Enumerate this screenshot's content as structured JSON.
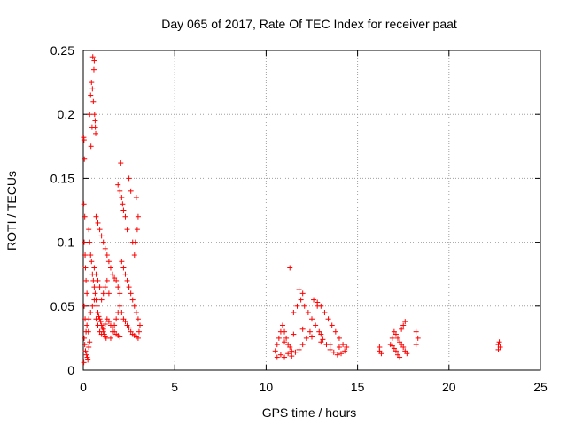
{
  "colors": {
    "points": "#ff0000",
    "grid": "#a0a0a0",
    "axes": "#000000"
  },
  "chart_data": {
    "type": "scatter",
    "title": "Day 065 of 2017, Rate Of TEC Index for receiver paat",
    "xlabel": "GPS time / hours",
    "ylabel": "ROTI / TECUs",
    "xlim": [
      0,
      25
    ],
    "ylim": [
      0,
      0.25
    ],
    "xticks": [
      "0",
      "5",
      "10",
      "15",
      "20",
      "25"
    ],
    "yticks": [
      "0",
      "0.05",
      "0.1",
      "0.15",
      "0.2",
      "0.25"
    ],
    "grid": true,
    "marker": "+",
    "series": [
      {
        "points": [
          [
            0.02,
            0.182
          ],
          [
            0.04,
            0.18
          ],
          [
            0.06,
            0.165
          ],
          [
            0.03,
            0.13
          ],
          [
            0.08,
            0.12
          ],
          [
            0.05,
            0.1
          ],
          [
            0.1,
            0.09
          ],
          [
            0.12,
            0.08
          ],
          [
            0.15,
            0.07
          ],
          [
            0.2,
            0.06
          ],
          [
            0.05,
            0.05
          ],
          [
            0.1,
            0.04
          ],
          [
            0.15,
            0.03
          ],
          [
            0.05,
            0.025
          ],
          [
            0.08,
            0.02
          ],
          [
            0.12,
            0.015
          ],
          [
            0.18,
            0.012
          ],
          [
            0.22,
            0.01
          ],
          [
            0.25,
            0.008
          ],
          [
            0.03,
            0.006
          ],
          [
            0.3,
            0.018
          ],
          [
            0.35,
            0.022
          ],
          [
            0.28,
            0.03
          ],
          [
            0.2,
            0.035
          ],
          [
            0.35,
            0.2
          ],
          [
            0.4,
            0.215
          ],
          [
            0.45,
            0.225
          ],
          [
            0.5,
            0.22
          ],
          [
            0.55,
            0.21
          ],
          [
            0.48,
            0.19
          ],
          [
            0.42,
            0.175
          ],
          [
            0.52,
            0.245
          ],
          [
            0.6,
            0.242
          ],
          [
            0.58,
            0.235
          ],
          [
            0.62,
            0.2
          ],
          [
            0.65,
            0.195
          ],
          [
            0.66,
            0.19
          ],
          [
            0.68,
            0.185
          ],
          [
            0.3,
            0.11
          ],
          [
            0.35,
            0.1
          ],
          [
            0.4,
            0.09
          ],
          [
            0.45,
            0.085
          ],
          [
            0.5,
            0.075
          ],
          [
            0.55,
            0.07
          ],
          [
            0.6,
            0.065
          ],
          [
            0.65,
            0.06
          ],
          [
            0.7,
            0.055
          ],
          [
            0.75,
            0.05
          ],
          [
            0.8,
            0.045
          ],
          [
            0.85,
            0.042
          ],
          [
            0.9,
            0.04
          ],
          [
            0.95,
            0.038
          ],
          [
            1.0,
            0.035
          ],
          [
            1.05,
            0.033
          ],
          [
            1.1,
            0.03
          ],
          [
            1.15,
            0.028
          ],
          [
            1.2,
            0.026
          ],
          [
            1.25,
            0.025
          ],
          [
            0.3,
            0.04
          ],
          [
            0.4,
            0.045
          ],
          [
            0.5,
            0.05
          ],
          [
            0.6,
            0.055
          ],
          [
            0.7,
            0.04
          ],
          [
            0.8,
            0.035
          ],
          [
            0.9,
            0.03
          ],
          [
            1.0,
            0.028
          ],
          [
            1.1,
            0.032
          ],
          [
            1.2,
            0.036
          ],
          [
            1.3,
            0.04
          ],
          [
            1.4,
            0.038
          ],
          [
            1.5,
            0.035
          ],
          [
            1.6,
            0.033
          ],
          [
            1.7,
            0.03
          ],
          [
            1.8,
            0.028
          ],
          [
            1.9,
            0.027
          ],
          [
            2.0,
            0.026
          ],
          [
            0.7,
            0.12
          ],
          [
            0.8,
            0.115
          ],
          [
            0.9,
            0.11
          ],
          [
            1.0,
            0.105
          ],
          [
            1.1,
            0.1
          ],
          [
            1.2,
            0.095
          ],
          [
            1.3,
            0.09
          ],
          [
            1.4,
            0.085
          ],
          [
            1.5,
            0.08
          ],
          [
            1.6,
            0.075
          ],
          [
            1.7,
            0.072
          ],
          [
            1.8,
            0.07
          ],
          [
            1.9,
            0.065
          ],
          [
            2.0,
            0.06
          ],
          [
            1.9,
            0.145
          ],
          [
            2.0,
            0.14
          ],
          [
            2.05,
            0.162
          ],
          [
            2.1,
            0.135
          ],
          [
            2.15,
            0.13
          ],
          [
            2.2,
            0.125
          ],
          [
            2.3,
            0.12
          ],
          [
            2.4,
            0.11
          ],
          [
            2.5,
            0.15
          ],
          [
            2.6,
            0.14
          ],
          [
            2.7,
            0.1
          ],
          [
            2.8,
            0.09
          ],
          [
            2.9,
            0.135
          ],
          [
            3.0,
            0.12
          ],
          [
            2.95,
            0.11
          ],
          [
            2.85,
            0.1
          ],
          [
            2.0,
            0.05
          ],
          [
            2.1,
            0.045
          ],
          [
            2.2,
            0.04
          ],
          [
            2.3,
            0.038
          ],
          [
            2.4,
            0.035
          ],
          [
            2.5,
            0.033
          ],
          [
            2.6,
            0.03
          ],
          [
            2.7,
            0.028
          ],
          [
            2.8,
            0.027
          ],
          [
            2.9,
            0.026
          ],
          [
            3.0,
            0.025
          ],
          [
            3.05,
            0.03
          ],
          [
            3.1,
            0.035
          ],
          [
            3.0,
            0.04
          ],
          [
            2.9,
            0.045
          ],
          [
            2.8,
            0.05
          ],
          [
            2.7,
            0.055
          ],
          [
            2.6,
            0.06
          ],
          [
            2.5,
            0.065
          ],
          [
            2.4,
            0.07
          ],
          [
            2.3,
            0.075
          ],
          [
            2.2,
            0.08
          ],
          [
            2.1,
            0.085
          ],
          [
            1.5,
            0.025
          ],
          [
            1.6,
            0.03
          ],
          [
            1.7,
            0.035
          ],
          [
            1.8,
            0.04
          ],
          [
            1.9,
            0.045
          ],
          [
            1.4,
            0.06
          ],
          [
            1.3,
            0.07
          ],
          [
            1.2,
            0.065
          ],
          [
            1.1,
            0.06
          ],
          [
            1.0,
            0.055
          ],
          [
            0.9,
            0.065
          ],
          [
            0.8,
            0.07
          ],
          [
            0.7,
            0.075
          ],
          [
            0.6,
            0.08
          ],
          [
            10.5,
            0.015
          ],
          [
            10.6,
            0.02
          ],
          [
            10.7,
            0.025
          ],
          [
            10.8,
            0.03
          ],
          [
            10.9,
            0.035
          ],
          [
            11.0,
            0.03
          ],
          [
            11.1,
            0.025
          ],
          [
            11.2,
            0.02
          ],
          [
            11.3,
            0.018
          ],
          [
            11.4,
            0.015
          ],
          [
            10.6,
            0.01
          ],
          [
            10.8,
            0.012
          ],
          [
            11.0,
            0.01
          ],
          [
            11.2,
            0.013
          ],
          [
            11.4,
            0.011
          ],
          [
            11.6,
            0.014
          ],
          [
            11.8,
            0.016
          ],
          [
            12.0,
            0.02
          ],
          [
            11.5,
            0.045
          ],
          [
            11.7,
            0.05
          ],
          [
            11.9,
            0.055
          ],
          [
            12.0,
            0.06
          ],
          [
            12.1,
            0.05
          ],
          [
            12.3,
            0.045
          ],
          [
            12.5,
            0.04
          ],
          [
            12.7,
            0.035
          ],
          [
            12.9,
            0.03
          ],
          [
            13.0,
            0.028
          ],
          [
            12.8,
            0.05
          ],
          [
            12.6,
            0.055
          ],
          [
            12.4,
            0.03
          ],
          [
            12.2,
            0.025
          ],
          [
            11.3,
            0.08
          ],
          [
            11.8,
            0.063
          ],
          [
            12.8,
            0.053
          ],
          [
            13.0,
            0.05
          ],
          [
            13.2,
            0.045
          ],
          [
            13.4,
            0.04
          ],
          [
            13.6,
            0.035
          ],
          [
            13.8,
            0.03
          ],
          [
            14.0,
            0.025
          ],
          [
            14.2,
            0.02
          ],
          [
            14.4,
            0.018
          ],
          [
            14.3,
            0.015
          ],
          [
            14.1,
            0.013
          ],
          [
            13.9,
            0.012
          ],
          [
            13.7,
            0.014
          ],
          [
            13.5,
            0.016
          ],
          [
            13.3,
            0.02
          ],
          [
            13.1,
            0.024
          ],
          [
            11.0,
            0.022
          ],
          [
            11.5,
            0.028
          ],
          [
            12.0,
            0.032
          ],
          [
            12.5,
            0.026
          ],
          [
            13.0,
            0.022
          ],
          [
            13.5,
            0.02
          ],
          [
            14.0,
            0.018
          ],
          [
            16.2,
            0.015
          ],
          [
            16.2,
            0.018
          ],
          [
            16.3,
            0.013
          ],
          [
            16.8,
            0.02
          ],
          [
            16.9,
            0.025
          ],
          [
            17.0,
            0.03
          ],
          [
            17.1,
            0.028
          ],
          [
            17.2,
            0.025
          ],
          [
            17.3,
            0.022
          ],
          [
            17.4,
            0.02
          ],
          [
            17.5,
            0.018
          ],
          [
            17.6,
            0.015
          ],
          [
            17.7,
            0.013
          ],
          [
            17.5,
            0.035
          ],
          [
            17.6,
            0.038
          ],
          [
            17.4,
            0.032
          ],
          [
            17.3,
            0.01
          ],
          [
            17.2,
            0.012
          ],
          [
            17.1,
            0.015
          ],
          [
            17.0,
            0.017
          ],
          [
            16.9,
            0.019
          ],
          [
            18.2,
            0.03
          ],
          [
            18.3,
            0.025
          ],
          [
            18.2,
            0.02
          ],
          [
            22.7,
            0.02
          ],
          [
            22.75,
            0.022
          ],
          [
            22.8,
            0.018
          ],
          [
            22.7,
            0.016
          ]
        ]
      }
    ]
  }
}
